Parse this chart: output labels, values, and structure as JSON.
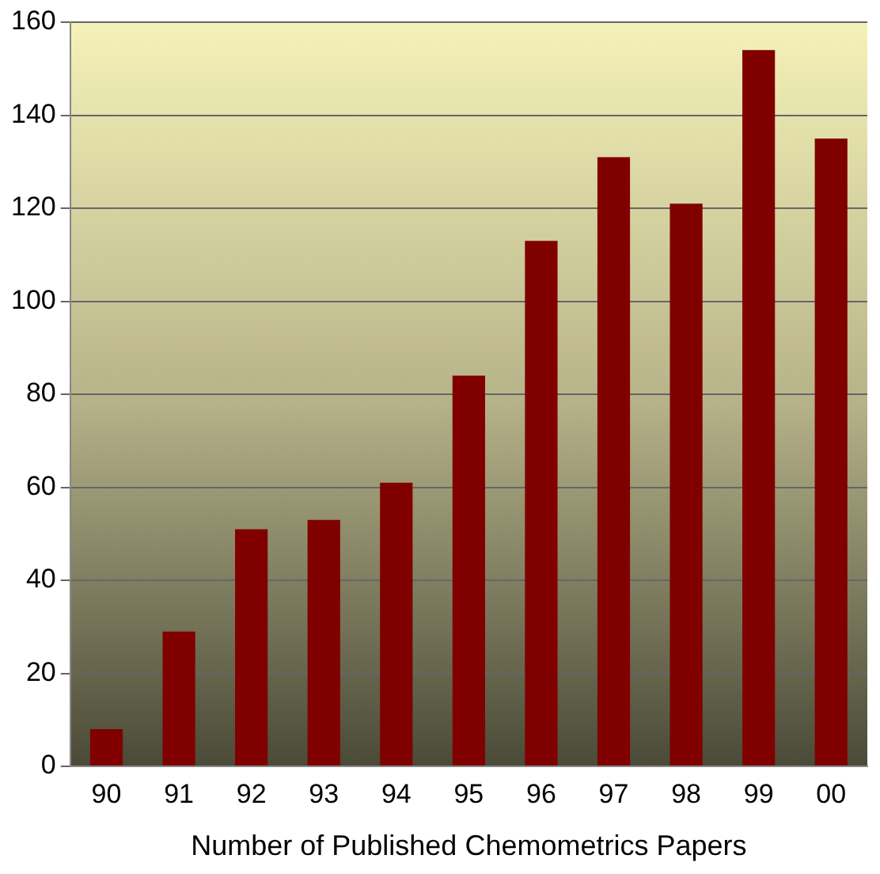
{
  "chart_data": {
    "type": "bar",
    "xlabel": "Number of Published Chemometrics Papers",
    "categories": [
      "90",
      "91",
      "92",
      "93",
      "94",
      "95",
      "96",
      "97",
      "98",
      "99",
      "00"
    ],
    "values": [
      8,
      29,
      51,
      53,
      61,
      84,
      113,
      131,
      121,
      154,
      135
    ],
    "color": "#800000",
    "ylim": [
      0,
      160
    ],
    "yticks": [
      0,
      20,
      40,
      60,
      80,
      100,
      120,
      140,
      160
    ],
    "grid": "y",
    "legend": false
  }
}
